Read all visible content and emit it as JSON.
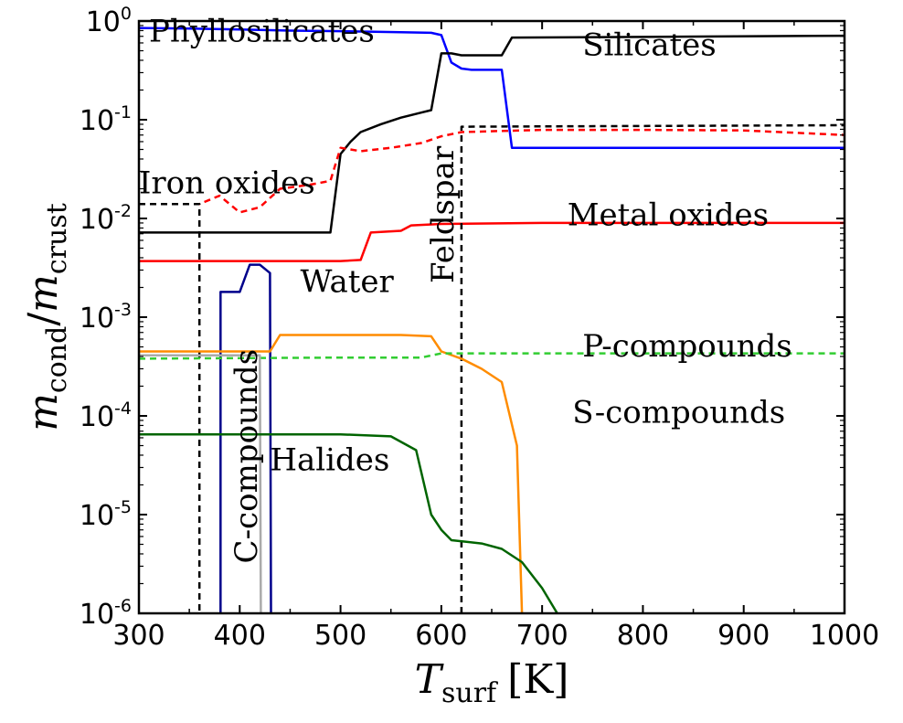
{
  "chart_data": {
    "type": "line",
    "title": "",
    "xlabel": {
      "symbol": "T",
      "subscript": "surf",
      "unit": "[K]"
    },
    "ylabel": {
      "numerator_symbol": "m",
      "numerator_subscript": "cond",
      "separator": "/",
      "denominator_symbol": "m",
      "denominator_subscript": "crust"
    },
    "xlim": [
      300,
      1000
    ],
    "ylim": [
      1e-06,
      1
    ],
    "yscale": "log",
    "x_ticks": [
      "300",
      "400",
      "500",
      "600",
      "700",
      "800",
      "900",
      "1000"
    ],
    "y_ticks": [
      {
        "exp": -6,
        "base": "10",
        "sup": "-6"
      },
      {
        "exp": -5,
        "base": "10",
        "sup": "-5"
      },
      {
        "exp": -4,
        "base": "10",
        "sup": "-4"
      },
      {
        "exp": -3,
        "base": "10",
        "sup": "-3"
      },
      {
        "exp": -2,
        "base": "10",
        "sup": "-2"
      },
      {
        "exp": -1,
        "base": "10",
        "sup": "-1"
      },
      {
        "exp": 0,
        "base": "10",
        "sup": "0"
      }
    ],
    "grid": false,
    "series": [
      {
        "name": "Phyllosilicates",
        "color": "#0000ff",
        "dash": "solid",
        "points": [
          [
            300,
            0.85
          ],
          [
            350,
            0.84
          ],
          [
            400,
            0.82
          ],
          [
            450,
            0.8
          ],
          [
            500,
            0.79
          ],
          [
            560,
            0.77
          ],
          [
            590,
            0.76
          ],
          [
            600,
            0.72
          ],
          [
            610,
            0.38
          ],
          [
            620,
            0.33
          ],
          [
            630,
            0.32
          ],
          [
            660,
            0.32
          ],
          [
            670,
            0.052
          ],
          [
            800,
            0.052
          ],
          [
            1000,
            0.052
          ]
        ]
      },
      {
        "name": "Silicates",
        "color": "#000000",
        "dash": "solid",
        "points": [
          [
            300,
            0.0072
          ],
          [
            360,
            0.0072
          ],
          [
            400,
            0.0072
          ],
          [
            450,
            0.0072
          ],
          [
            490,
            0.0072
          ],
          [
            500,
            0.045
          ],
          [
            510,
            0.06
          ],
          [
            520,
            0.075
          ],
          [
            540,
            0.09
          ],
          [
            560,
            0.105
          ],
          [
            580,
            0.118
          ],
          [
            590,
            0.125
          ],
          [
            600,
            0.47
          ],
          [
            610,
            0.47
          ],
          [
            620,
            0.45
          ],
          [
            640,
            0.45
          ],
          [
            660,
            0.45
          ],
          [
            670,
            0.68
          ],
          [
            800,
            0.69
          ],
          [
            1000,
            0.71
          ]
        ]
      },
      {
        "name": "Iron oxides",
        "color": "#ff0000",
        "dash": "dashed",
        "points": [
          [
            300,
            0.014
          ],
          [
            360,
            0.014
          ],
          [
            380,
            0.017
          ],
          [
            400,
            0.0115
          ],
          [
            420,
            0.013
          ],
          [
            440,
            0.02
          ],
          [
            470,
            0.022
          ],
          [
            490,
            0.024
          ],
          [
            500,
            0.052
          ],
          [
            520,
            0.048
          ],
          [
            550,
            0.052
          ],
          [
            580,
            0.058
          ],
          [
            600,
            0.068
          ],
          [
            620,
            0.075
          ],
          [
            700,
            0.079
          ],
          [
            800,
            0.079
          ],
          [
            900,
            0.078
          ],
          [
            1000,
            0.07
          ]
        ]
      },
      {
        "name": "Metal oxides",
        "color": "#ff0000",
        "dash": "solid",
        "points": [
          [
            300,
            0.0037
          ],
          [
            400,
            0.0037
          ],
          [
            500,
            0.0037
          ],
          [
            520,
            0.0038
          ],
          [
            530,
            0.0072
          ],
          [
            560,
            0.0075
          ],
          [
            570,
            0.0085
          ],
          [
            600,
            0.0088
          ],
          [
            700,
            0.009
          ],
          [
            1000,
            0.009
          ]
        ]
      },
      {
        "name": "Feldspar",
        "color": "#000000",
        "dash": "dashed",
        "points": [
          [
            620,
            1e-06
          ],
          [
            620,
            0.085
          ],
          [
            1000,
            0.088
          ]
        ]
      },
      {
        "name": "Iron oxides marker",
        "color": "#000000",
        "dash": "dashed",
        "points": [
          [
            300,
            0.014
          ],
          [
            360,
            0.014
          ],
          [
            360,
            1e-06
          ]
        ]
      },
      {
        "name": "Water",
        "color": "#00008b",
        "dash": "solid",
        "points": [
          [
            381,
            1e-06
          ],
          [
            381,
            0.0018
          ],
          [
            400,
            0.0018
          ],
          [
            410,
            0.0034
          ],
          [
            420,
            0.0034
          ],
          [
            430,
            0.0028
          ],
          [
            431,
            1e-06
          ]
        ]
      },
      {
        "name": "S-compounds",
        "color": "#ff8c00",
        "dash": "solid",
        "points": [
          [
            300,
            0.00045
          ],
          [
            430,
            0.00045
          ],
          [
            440,
            0.00066
          ],
          [
            500,
            0.00066
          ],
          [
            560,
            0.00066
          ],
          [
            590,
            0.00064
          ],
          [
            600,
            0.00045
          ],
          [
            620,
            0.00038
          ],
          [
            640,
            0.0003
          ],
          [
            660,
            0.00022
          ],
          [
            675,
            5e-05
          ],
          [
            680,
            1e-06
          ]
        ]
      },
      {
        "name": "P-compounds",
        "color": "#32cd32",
        "dash": "dashed",
        "points": [
          [
            300,
            0.00038
          ],
          [
            500,
            0.00039
          ],
          [
            580,
            0.00039
          ],
          [
            600,
            0.00043
          ],
          [
            700,
            0.00043
          ],
          [
            1000,
            0.00043
          ]
        ]
      },
      {
        "name": "C-compounds",
        "color": "#aaaaaa",
        "dash": "solid",
        "points": [
          [
            300,
            0.00041
          ],
          [
            420,
            0.00041
          ],
          [
            421,
            1e-06
          ]
        ]
      },
      {
        "name": "Halides",
        "color": "#006400",
        "dash": "solid",
        "points": [
          [
            300,
            6.5e-05
          ],
          [
            400,
            6.5e-05
          ],
          [
            500,
            6.5e-05
          ],
          [
            550,
            6.2e-05
          ],
          [
            575,
            4.5e-05
          ],
          [
            590,
            1e-05
          ],
          [
            600,
            7e-06
          ],
          [
            610,
            5.5e-06
          ],
          [
            640,
            5.1e-06
          ],
          [
            660,
            4.5e-06
          ],
          [
            680,
            3.3e-06
          ],
          [
            700,
            1.8e-06
          ],
          [
            715,
            1e-06
          ]
        ]
      }
    ],
    "annotations": [
      {
        "name": "phyllosilicates",
        "text": "Phyllosilicates",
        "x": 310,
        "y": 0.62,
        "rotation": 0
      },
      {
        "name": "silicates",
        "text": "Silicates",
        "x": 740,
        "y": 0.45,
        "rotation": 0
      },
      {
        "name": "iron-oxides",
        "text": "Iron oxides",
        "x": 300,
        "y": 0.018,
        "rotation": 0
      },
      {
        "name": "metal-oxides",
        "text": "Metal oxides",
        "x": 725,
        "y": 0.0085,
        "rotation": 0
      },
      {
        "name": "feldspar",
        "text": "Feldspar",
        "x": 612,
        "y": 0.0022,
        "rotation": -90
      },
      {
        "name": "water",
        "text": "Water",
        "x": 460,
        "y": 0.0018,
        "rotation": 0
      },
      {
        "name": "p-compounds",
        "text": "P-compounds",
        "x": 740,
        "y": 0.0004,
        "rotation": 0
      },
      {
        "name": "s-compounds",
        "text": "S-compounds",
        "x": 730,
        "y": 8.5e-05,
        "rotation": 0
      },
      {
        "name": "halides",
        "text": "Halides",
        "x": 430,
        "y": 2.8e-05,
        "rotation": 0
      },
      {
        "name": "c-compounds",
        "text": "C-compounds",
        "x": 417,
        "y": 3.2e-06,
        "rotation": -90
      }
    ]
  }
}
